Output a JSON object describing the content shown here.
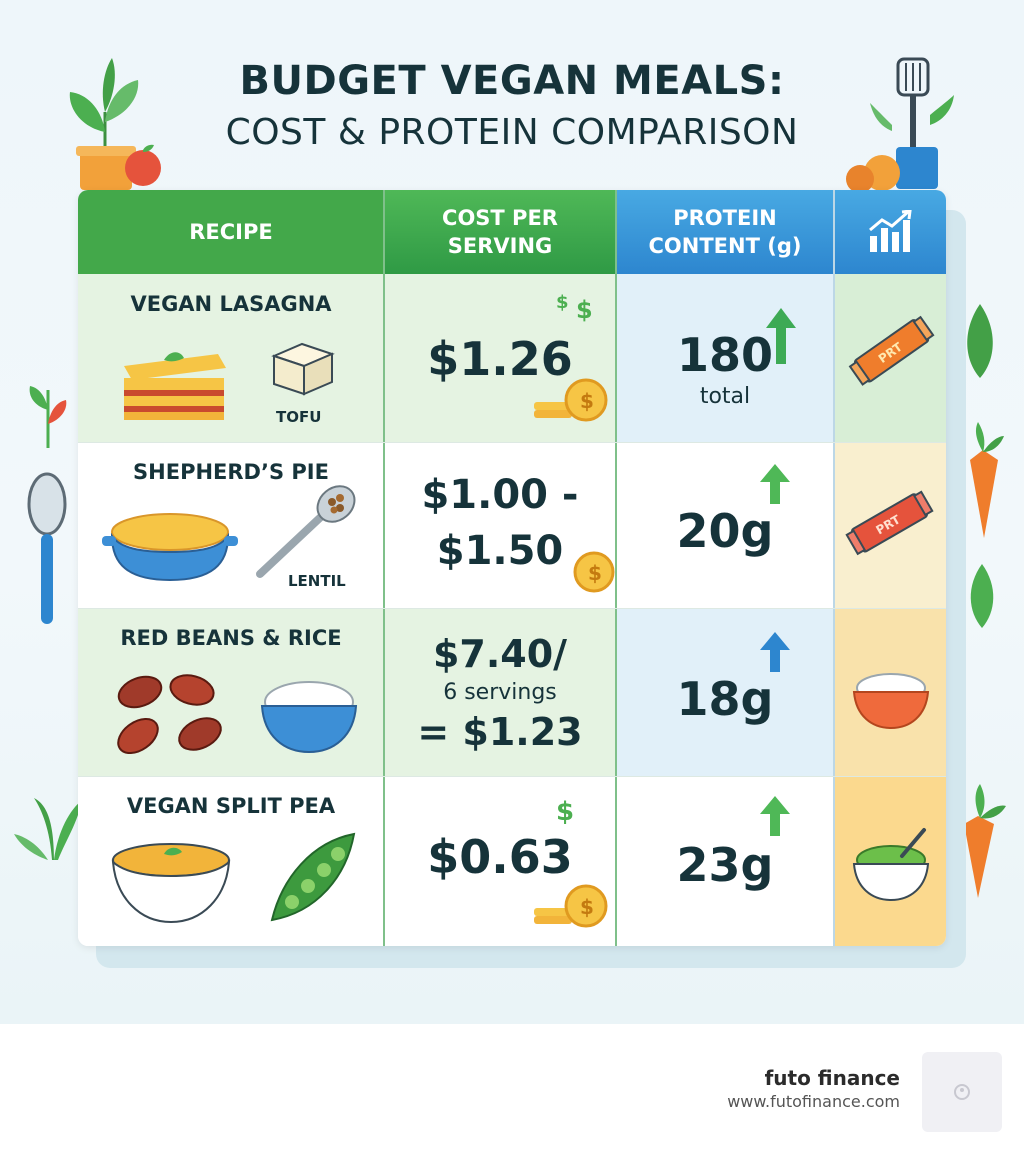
{
  "title": {
    "line1": "BUDGET VEGAN MEALS:",
    "line2": "COST & PROTEIN COMPARISON"
  },
  "headers": {
    "recipe": "RECIPE",
    "cost_line1": "COST PER",
    "cost_line2": "SERVING",
    "protein_line1": "PROTEIN",
    "protein_line2": "CONTENT (g)",
    "chart_icon": "bar-chart-icon"
  },
  "rows": [
    {
      "name": "VEGAN LASAGNA",
      "ingredient": "TOFU",
      "cost": "$1.26",
      "protein": "180",
      "protein_note": "total",
      "icons": [
        "lasagna-icon",
        "tofu-icon",
        "coins-icon",
        "arrow-up-icon",
        "protein-bar-icon"
      ]
    },
    {
      "name": "SHEPHERD’S PIE",
      "ingredient": "LENTIL",
      "cost_line1": "$1.00 -",
      "cost_line2": "$1.50",
      "protein": "20g",
      "icons": [
        "pie-dish-icon",
        "lentil-spoon-icon",
        "coin-icon",
        "arrow-up-icon",
        "protein-bar-icon"
      ]
    },
    {
      "name": "RED BEANS & RICE",
      "cost_line1": "$7.40/",
      "cost_line2": "6 servings",
      "cost_line3": "= $1.23",
      "protein": "18g",
      "icons": [
        "kidney-beans-icon",
        "rice-bowl-icon",
        "arrow-up-icon",
        "rice-bowl-icon"
      ]
    },
    {
      "name": "VEGAN SPLIT PEA",
      "cost": "$0.63",
      "protein": "23g",
      "icons": [
        "soup-bowl-icon",
        "pea-pod-icon",
        "coins-icon",
        "arrow-up-icon",
        "pea-bowl-icon"
      ]
    }
  ],
  "brand": {
    "name": "futo finance",
    "url": "www.futofinance.com"
  },
  "colors": {
    "green_header": "#43a84a",
    "blue_header": "#2d86cf",
    "text_dark": "#16333a"
  }
}
